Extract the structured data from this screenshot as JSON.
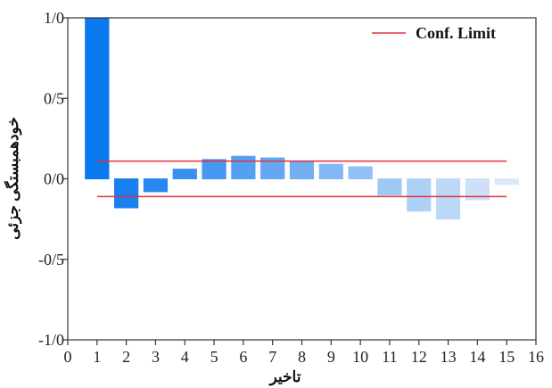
{
  "chart_data": {
    "type": "bar",
    "title": "",
    "xlabel": "تاخیر",
    "ylabel": "خودهمبستگی جزئی",
    "xlim": [
      0,
      16
    ],
    "ylim": [
      -1,
      1
    ],
    "x_ticks": [
      0,
      1,
      2,
      3,
      4,
      5,
      6,
      7,
      8,
      9,
      10,
      11,
      12,
      13,
      14,
      15,
      16
    ],
    "y_ticks": [
      {
        "value": 1,
        "label": "1/0"
      },
      {
        "value": 0.5,
        "label": "0/5"
      },
      {
        "value": 0,
        "label": "0/0"
      },
      {
        "value": -0.5,
        "label": "-0/5"
      },
      {
        "value": -1,
        "label": "-1/0"
      }
    ],
    "lags": [
      1,
      2,
      3,
      4,
      5,
      6,
      7,
      8,
      9,
      10,
      11,
      12,
      13,
      14,
      15
    ],
    "values": [
      1.0,
      -0.18,
      -0.08,
      0.06,
      0.12,
      0.14,
      0.13,
      0.11,
      0.09,
      0.075,
      -0.1,
      -0.2,
      -0.25,
      -0.13,
      -0.035
    ],
    "confidence_limits": [
      0.11,
      -0.11
    ],
    "legend": {
      "label": "Conf. Limit",
      "position": "top-right"
    },
    "grid": false,
    "colors": {
      "bar_start": "#0a78ee",
      "bar_end": "#dce8f8",
      "conf_line": "#e0303a",
      "axis": "#333333"
    }
  }
}
